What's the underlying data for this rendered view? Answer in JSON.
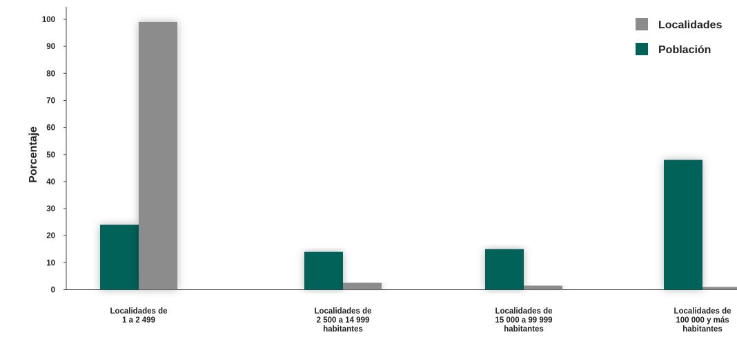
{
  "chart_data": {
    "type": "bar",
    "title": "",
    "xlabel": "",
    "ylabel": "Porcentaje",
    "ylim": [
      0,
      100
    ],
    "yticks": [
      0,
      10,
      20,
      30,
      40,
      50,
      60,
      70,
      80,
      90,
      100
    ],
    "grid": false,
    "legend_position": "top-right",
    "categories": [
      [
        "Localidades de",
        "1 a 2 499"
      ],
      [
        "Localidades de",
        "2 500 a 14 999",
        "habitantes"
      ],
      [
        "Localidades de",
        "15 000 a 99 999",
        "habitantes"
      ],
      [
        "Localidades de",
        "100 000 y más",
        "habitantes"
      ]
    ],
    "series": [
      {
        "name": "Población",
        "color": "#006259",
        "values": [
          24,
          14,
          15,
          48
        ]
      },
      {
        "name": "Localidades",
        "color": "#8c8c8c",
        "values": [
          99,
          2.5,
          1.5,
          1
        ]
      }
    ],
    "legend_order": [
      "Localidades",
      "Población"
    ]
  }
}
